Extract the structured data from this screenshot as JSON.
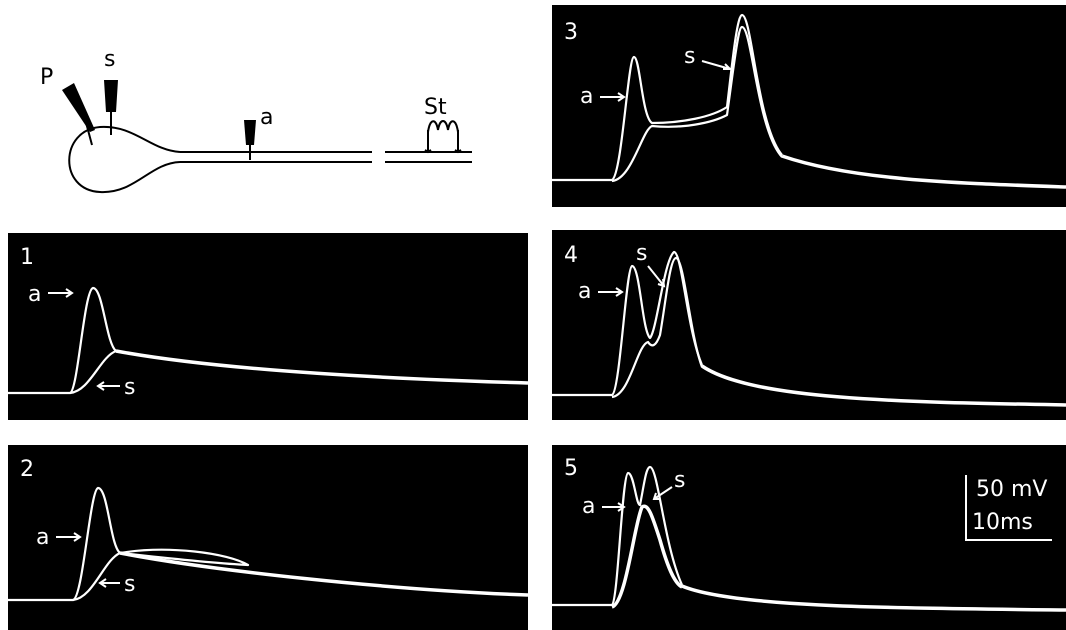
{
  "diagram": {
    "pipette": "P",
    "soma_electrode": "s",
    "axon_electrode": "a",
    "stimulator": "St"
  },
  "panels": [
    {
      "number": "1",
      "axon_label": "a",
      "soma_label": "s"
    },
    {
      "number": "2",
      "axon_label": "a",
      "soma_label": "s"
    },
    {
      "number": "3",
      "axon_label": "a",
      "soma_label": "s"
    },
    {
      "number": "4",
      "axon_label": "a",
      "soma_label": "s"
    },
    {
      "number": "5",
      "axon_label": "a",
      "soma_label": "s"
    }
  ],
  "scale_bar": {
    "voltage": "50 mV",
    "time": "10ms"
  }
}
